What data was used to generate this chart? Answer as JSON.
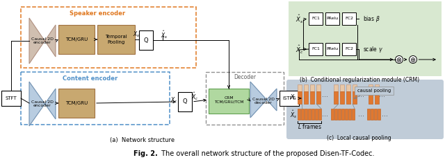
{
  "title_bold": "Fig. 2.",
  "title_rest": " The overall network structure of the proposed Disen-TF-Codec.",
  "caption_a": "(a)  Network structure",
  "caption_b": "(b)  Conditional regularization module (CRM)",
  "caption_c": "(c)  Local causal pooling",
  "speaker_encoder_label": "Speaker encoder",
  "content_encoder_label": "Content encoder",
  "decoder_label": "Decoder",
  "orange_border": "#e07820",
  "blue_border": "#5090c8",
  "gray_border": "#909090",
  "encoder_face": "#d0bfb0",
  "encoder_dark": "#b09080",
  "encoder_face_blue": "#b8cce0",
  "encoder_dark_blue": "#7090b0",
  "tcm_color": "#c8a870",
  "tcm_ec": "#a07040",
  "green_bg": "#d8e8d0",
  "crm_fill": "#b0d8a0",
  "crm_ec": "#60a050",
  "pooling_bg": "#c0ccd8",
  "orange_bar": "#e07830",
  "orange_bar_ec": "#c05810",
  "pooling_top": "#e8c8a8",
  "pooling_top_ec": "#c09070",
  "white": "#ffffff",
  "black": "#000000",
  "gray_line": "#808080"
}
